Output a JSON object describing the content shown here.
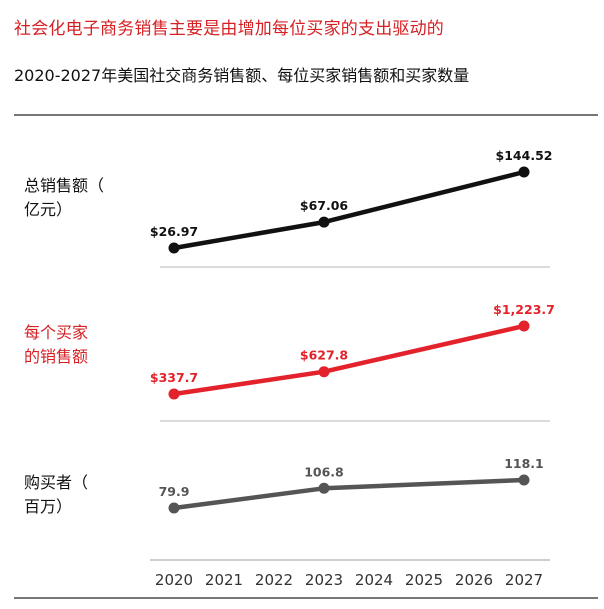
{
  "headline": "社会化电子商务销售主要是由增加每位买家的支出驱动的",
  "subtitle": "2020-2027年美国社交商务销售额、每位买家销售额和买家数量",
  "chart_data": {
    "type": "line",
    "x": [
      "2020",
      "2021",
      "2022",
      "2023",
      "2024",
      "2025",
      "2026",
      "2027"
    ],
    "panels": [
      {
        "label_lines": [
          "总销售额（",
          "亿元）"
        ],
        "color": "#111111",
        "label_color": "#111111",
        "points": [
          {
            "x": "2020",
            "y": 26.97,
            "label": "$26.97"
          },
          {
            "x": "2023",
            "y": 67.06,
            "label": "$67.06"
          },
          {
            "x": "2027",
            "y": 144.52,
            "label": "$144.52"
          }
        ]
      },
      {
        "label_lines": [
          "每个买家",
          "的销售额"
        ],
        "color": "#e3222b",
        "label_color": "#d62024",
        "points": [
          {
            "x": "2020",
            "y": 337.7,
            "label": "$337.7"
          },
          {
            "x": "2023",
            "y": 627.8,
            "label": "$627.8"
          },
          {
            "x": "2027",
            "y": 1223.7,
            "label": "$1,223.7"
          }
        ]
      },
      {
        "label_lines": [
          "购买者（",
          "百万）"
        ],
        "color": "#555555",
        "label_color": "#111111",
        "points": [
          {
            "x": "2020",
            "y": 79.9,
            "label": "79.9"
          },
          {
            "x": "2023",
            "y": 106.8,
            "label": "106.8"
          },
          {
            "x": "2027",
            "y": 118.1,
            "label": "118.1"
          }
        ]
      }
    ]
  }
}
